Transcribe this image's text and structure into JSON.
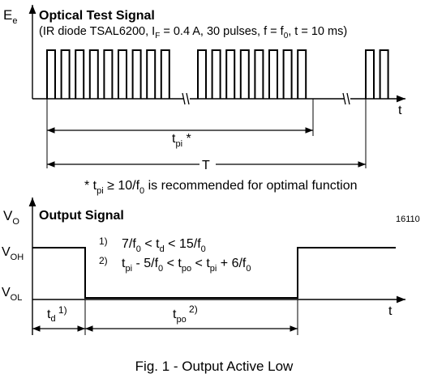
{
  "top": {
    "axis_label": "E",
    "axis_label_sub": "e",
    "title": "Optical Test Signal",
    "cond_parts": {
      "a": "(IR diode TSAL6200, I",
      "a_sub": "F",
      "b": " = 0.4 A, 30 pulses, f = f",
      "b_sub": "0",
      "c": ", t = 10 ms)"
    },
    "t_label": "t",
    "tpi_label": "t",
    "tpi_sub": "pi",
    "tpi_star": " *",
    "T_label": "T",
    "footnote": {
      "star": "* t",
      "sub1": "pi",
      "rest1": " ≥ 10/f",
      "sub2": "0",
      "rest2": " is recommended for optimal function"
    }
  },
  "bottom": {
    "axis_label": "V",
    "axis_label_sub": "O",
    "title": "Output Signal",
    "fig_id": "16110",
    "voh": "V",
    "voh_sub": "OH",
    "vol": "V",
    "vol_sub": "OL",
    "t_label": "t",
    "cond1_num": "1)",
    "cond1": {
      "a": "7/f",
      "a_sub": "0",
      "b": " < t",
      "b_sub": "d",
      "c": " < 15/f",
      "c_sub": "0"
    },
    "cond2_num": "2)",
    "cond2": {
      "a": "t",
      "a_sub": "pi",
      "b": " - 5/f",
      "b_sub": "0",
      "c": " < t",
      "c_sub": "po",
      "d": " < t",
      "d_sub": "pi",
      "e": " + 6/f",
      "e_sub": "0"
    },
    "td": "t",
    "td_sub": "d",
    "td_sup": " 1)",
    "tpo": "t",
    "tpo_sub": "po",
    "tpo_sup": " 2)"
  },
  "caption": "Fig. 1 - Output Active Low"
}
